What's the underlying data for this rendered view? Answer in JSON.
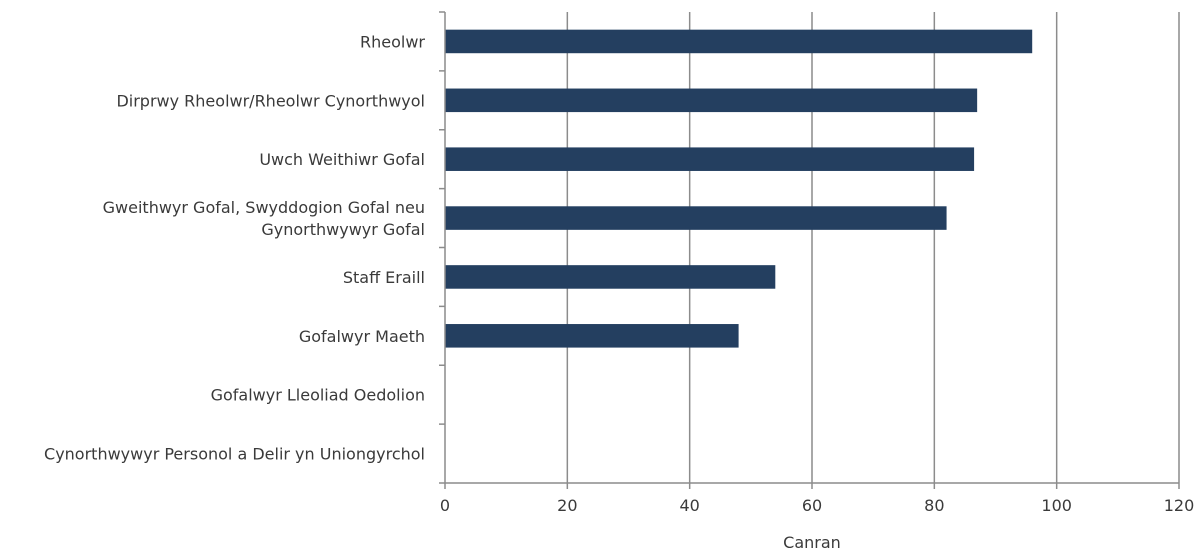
{
  "chart_data": {
    "type": "bar",
    "orientation": "horizontal",
    "categories": [
      [
        "Rheolwr"
      ],
      [
        "Dirprwy Rheolwr/Rheolwr Cynorthwyol"
      ],
      [
        "Uwch Weithiwr Gofal"
      ],
      [
        "Gweithwyr Gofal, Swyddogion Gofal neu",
        "Gynorthwywyr Gofal"
      ],
      [
        "Staff Eraill"
      ],
      [
        "Gofalwyr Maeth"
      ],
      [
        "Gofalwyr Lleoliad Oedolion"
      ],
      [
        "Cynorthwywyr Personol a Delir yn Uniongyrchol"
      ]
    ],
    "values": [
      96,
      87,
      86.5,
      82,
      54,
      48,
      null,
      null
    ],
    "xlabel": "Canran",
    "ylabel": "",
    "xlim": [
      0,
      120
    ],
    "xticks": [
      "0",
      "20",
      "40",
      "60",
      "80",
      "100",
      "120"
    ],
    "grid": "vertical",
    "colors": {
      "bar": "#243f60",
      "grid": "#8c8c8c",
      "axis": "#8c8c8c"
    }
  }
}
